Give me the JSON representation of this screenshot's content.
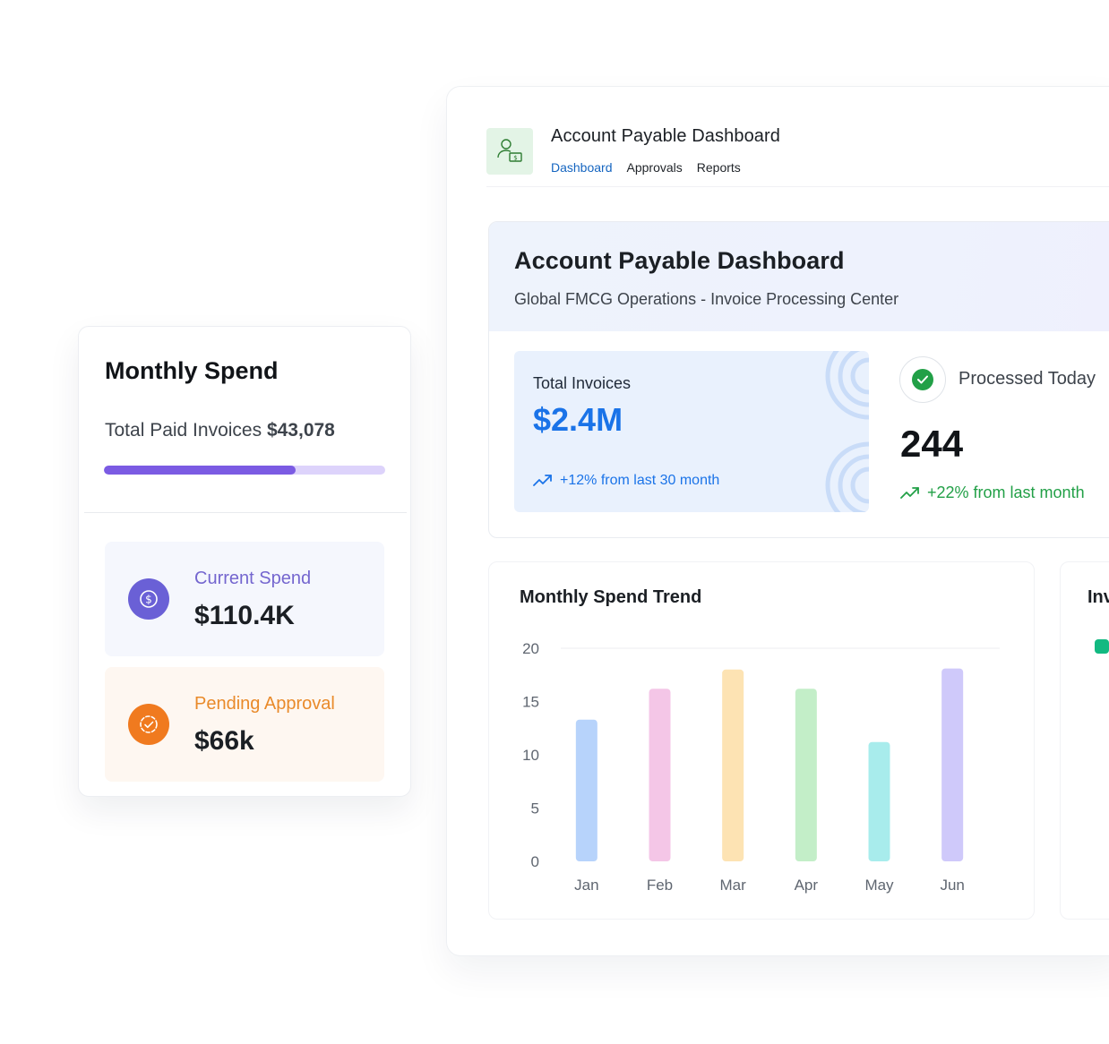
{
  "app": {
    "title": "Account Payable Dashboard",
    "tabs": [
      {
        "label": "Dashboard",
        "active": true
      },
      {
        "label": "Approvals",
        "active": false
      },
      {
        "label": "Reports",
        "active": false
      }
    ],
    "icon": "user-dollar-icon"
  },
  "hero": {
    "title": "Account Payable Dashboard",
    "subtitle": "Global FMCG Operations - Invoice Processing Center"
  },
  "total_invoices": {
    "label": "Total Invoices",
    "value": "$2.4M",
    "trend": "+12% from last 30 month",
    "trend_icon": "trending-up-icon"
  },
  "processed_today": {
    "label": "Processed Today",
    "value": "244",
    "trend": "+22% from last month",
    "status_icon": "check-circle-icon",
    "trend_icon": "trending-up-icon"
  },
  "side_card": {
    "title_partial": "Inv"
  },
  "monthly_spend": {
    "title": "Monthly Spend",
    "paid_label": "Total Paid Invoices",
    "paid_value": "$43,078",
    "progress_fraction": 0.68,
    "current": {
      "label": "Current Spend",
      "value": "$110.4K",
      "icon": "dollar-coin-icon"
    },
    "pending": {
      "label": "Pending Approval",
      "value": "$66k",
      "icon": "clock-check-icon"
    }
  },
  "colors": {
    "accent_blue": "#1a73e8",
    "success_green": "#22a047",
    "purple": "#7b5be3",
    "orange": "#f07a1f"
  },
  "chart_data": {
    "type": "bar",
    "title": "Monthly Spend Trend",
    "categories": [
      "Jan",
      "Feb",
      "Mar",
      "Apr",
      "May",
      "Jun"
    ],
    "values": [
      13.3,
      16.2,
      18,
      16.2,
      11.2,
      18.1
    ],
    "bar_colors": [
      "#b7d3fb",
      "#f4c6e7",
      "#fde3b3",
      "#c3eec8",
      "#a8ecec",
      "#cfc9fa"
    ],
    "yticks": [
      0,
      5,
      10,
      15,
      20
    ],
    "ylim": [
      0,
      20
    ],
    "xlabel": "",
    "ylabel": "",
    "grid": "top-line-only",
    "legend": "none"
  }
}
